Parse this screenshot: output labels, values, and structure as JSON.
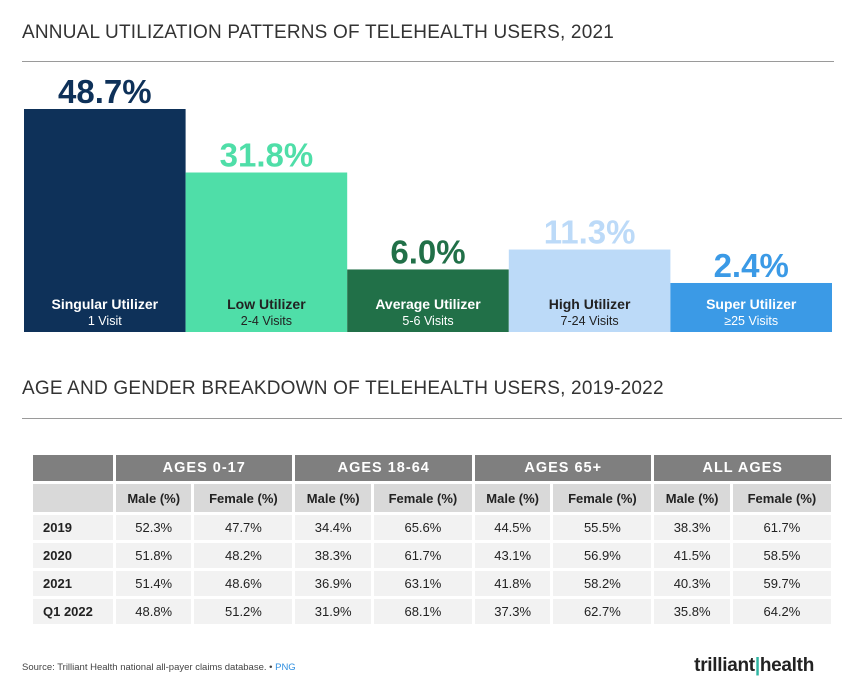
{
  "chart_title": "ANNUAL UTILIZATION PATTERNS OF TELEHEALTH USERS, 2021",
  "table_title": "AGE AND GENDER BREAKDOWN OF TELEHEALTH USERS, 2019-2022",
  "chart_data": {
    "type": "bar",
    "categories": [
      "Singular Utilizer",
      "Low Utilizer",
      "Average Utilizer",
      "High Utilizer",
      "Super Utilizer"
    ],
    "subtitles": [
      "1 Visit",
      "2-4 Visits",
      "5-6 Visits",
      "7-24 Visits",
      "≥25 Visits"
    ],
    "values": [
      48.7,
      31.8,
      6.0,
      11.3,
      2.4
    ],
    "value_labels": [
      "48.7%",
      "31.8%",
      "6.0%",
      "11.3%",
      "2.4%"
    ],
    "colors": [
      "#0e3159",
      "#4fdea8",
      "#217048",
      "#bcdaf8",
      "#3b9ae6"
    ],
    "label_text_colors": [
      "#0e3159",
      "#4fdea8",
      "#217048",
      "#bcdaf8",
      "#3b9ae6"
    ],
    "category_text_colors": [
      "#ffffff",
      "#222222",
      "#ffffff",
      "#222222",
      "#ffffff"
    ],
    "title": "ANNUAL UTILIZATION PATTERNS OF TELEHEALTH USERS, 2021",
    "xlabel": "",
    "ylabel": "",
    "ylim": [
      0,
      48.7
    ],
    "grid": false
  },
  "table": {
    "groups": [
      "AGES 0-17",
      "AGES 18-64",
      "AGES 65+",
      "ALL AGES"
    ],
    "subheaders": [
      "Male (%)",
      "Female (%)",
      "Male (%)",
      "Female (%)",
      "Male (%)",
      "Female (%)",
      "Male (%)",
      "Female (%)"
    ],
    "rows": [
      {
        "year": "2019",
        "cells": [
          "52.3%",
          "47.7%",
          "34.4%",
          "65.6%",
          "44.5%",
          "55.5%",
          "38.3%",
          "61.7%"
        ]
      },
      {
        "year": "2020",
        "cells": [
          "51.8%",
          "48.2%",
          "38.3%",
          "61.7%",
          "43.1%",
          "56.9%",
          "41.5%",
          "58.5%"
        ]
      },
      {
        "year": "2021",
        "cells": [
          "51.4%",
          "48.6%",
          "36.9%",
          "63.1%",
          "41.8%",
          "58.2%",
          "40.3%",
          "59.7%"
        ]
      },
      {
        "year": "Q1 2022",
        "cells": [
          "48.8%",
          "51.2%",
          "31.9%",
          "68.1%",
          "37.3%",
          "62.7%",
          "35.8%",
          "64.2%"
        ]
      }
    ]
  },
  "footer": {
    "source": "Source: Trilliant Health national all-payer claims database.",
    "separator": "•",
    "png_link": "PNG",
    "logo_text_a": "trilliant",
    "logo_text_b": "health"
  }
}
